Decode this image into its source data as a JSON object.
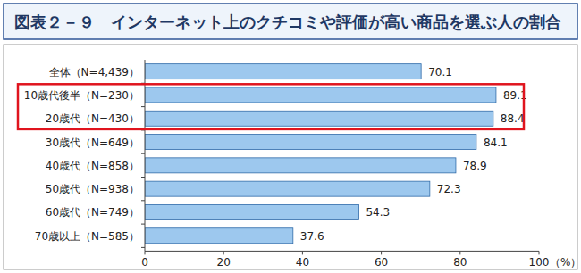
{
  "chart_data": {
    "type": "bar",
    "orientation": "horizontal",
    "title": "図表２－９　インターネット上のクチコミや評価が高い商品を選ぶ人の割合",
    "categories": [
      "全体（N=4,439）",
      "10歳代後半（N=230）",
      "20歳代（N=430）",
      "30歳代（N=649）",
      "40歳代（N=858）",
      "50歳代（N=938）",
      "60歳代（N=749）",
      "70歳以上（N=585）"
    ],
    "values": [
      70.1,
      89.1,
      88.4,
      84.1,
      78.9,
      72.3,
      54.3,
      37.6
    ],
    "color": "#9dc8ee",
    "xlim": [
      0,
      100
    ],
    "xticks": [
      0,
      20,
      40,
      60,
      80,
      100
    ],
    "x_label": "（%）",
    "data_labels": true,
    "grid": false
  }
}
